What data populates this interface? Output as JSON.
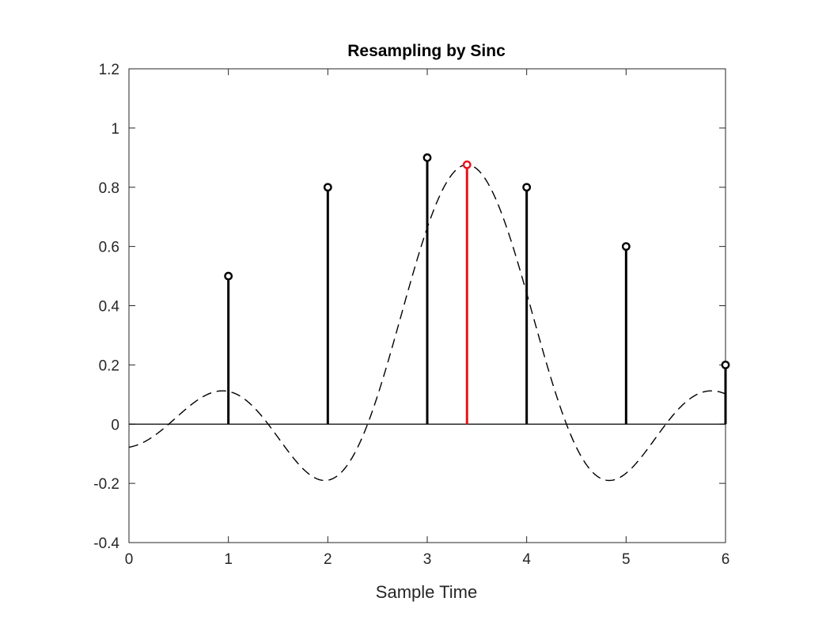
{
  "chart_data": {
    "type": "stem",
    "title": "Resampling by Sinc",
    "xlabel": "Sample Time",
    "ylabel": "",
    "xlim": [
      0,
      6
    ],
    "ylim": [
      -0.4,
      1.2
    ],
    "x_ticks": [
      "0",
      "1",
      "2",
      "3",
      "4",
      "5",
      "6"
    ],
    "y_ticks": [
      "-0.4",
      "-0.2",
      "0",
      "0.2",
      "0.4",
      "0.6",
      "0.8",
      "1",
      "1.2"
    ],
    "series": [
      {
        "marker": "circle",
        "color": "#000000",
        "x": [
          1,
          2,
          3,
          4,
          5,
          6
        ],
        "y": [
          0.5,
          0.8,
          0.9,
          0.8,
          0.6,
          0.2
        ]
      },
      {
        "marker": "circle",
        "color": "#e8121a",
        "x": [
          3.4
        ],
        "y": [
          0.876
        ]
      }
    ],
    "curve": {
      "style": "dashed",
      "color": "#000000",
      "center": 3.4,
      "amplitude": 0.876
    },
    "grid": false,
    "legend": "none"
  }
}
